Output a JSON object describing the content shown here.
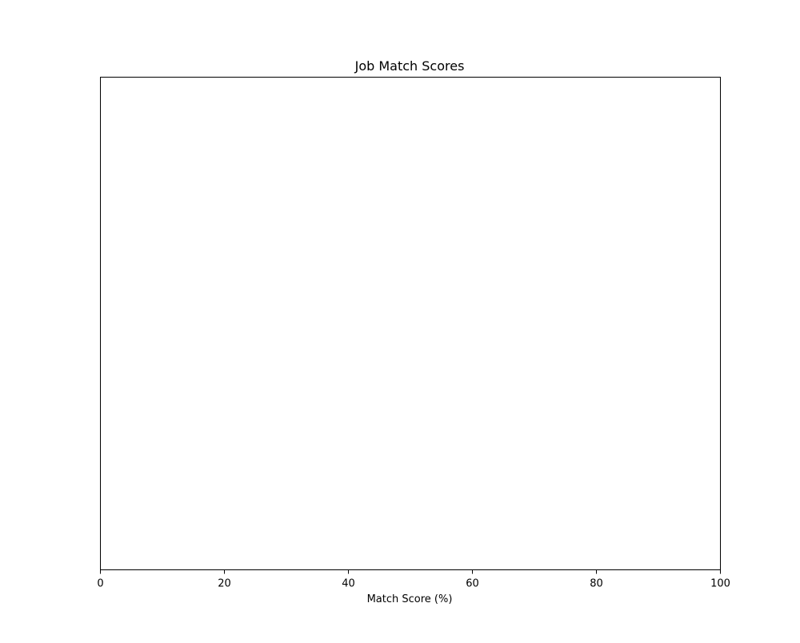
{
  "chart_data": {
    "type": "bar",
    "title": "Job Match Scores",
    "xlabel": "Match Score (%)",
    "ylabel": "",
    "xlim": [
      0,
      100
    ],
    "xticks": [
      0,
      20,
      40,
      60,
      80,
      100
    ],
    "categories": [],
    "values": [],
    "grid": false,
    "colors": {
      "axes": "#000000",
      "background": "#ffffff"
    }
  }
}
